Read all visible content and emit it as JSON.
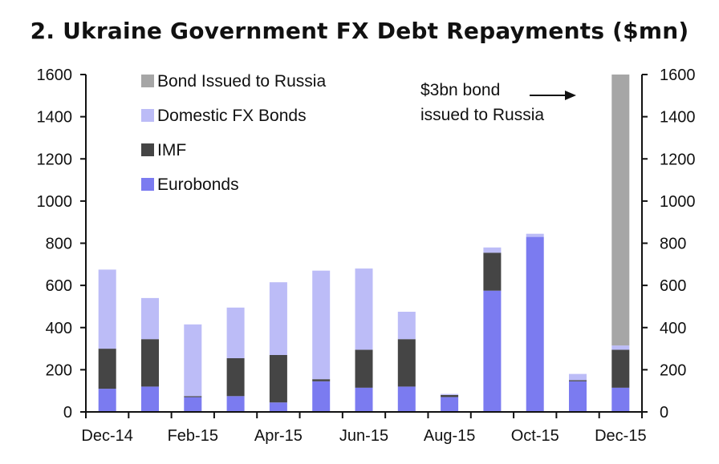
{
  "chart_data": {
    "type": "bar",
    "stacked": true,
    "title": "2. Ukraine Government FX Debt Repayments ($mn)",
    "categories": [
      "Dec-14",
      "Jan-15",
      "Feb-15",
      "Mar-15",
      "Apr-15",
      "May-15",
      "Jun-15",
      "Jul-15",
      "Aug-15",
      "Sep-15",
      "Oct-15",
      "Nov-15",
      "Dec-15"
    ],
    "x_tick_labels": [
      "Dec-14",
      "Feb-15",
      "Apr-15",
      "Jun-15",
      "Aug-15",
      "Oct-15",
      "Dec-15"
    ],
    "ylim": [
      0,
      1600
    ],
    "yticks": [
      0,
      200,
      400,
      600,
      800,
      1000,
      1200,
      1400,
      1600
    ],
    "secondary_y_axis": true,
    "series": [
      {
        "name": "Eurobonds",
        "color": "#7b7bf0",
        "values": [
          110,
          120,
          70,
          75,
          45,
          145,
          115,
          120,
          70,
          575,
          830,
          145,
          115
        ]
      },
      {
        "name": "IMF",
        "color": "#454545",
        "values": [
          190,
          225,
          5,
          180,
          225,
          10,
          180,
          225,
          10,
          180,
          0,
          5,
          180
        ]
      },
      {
        "name": "Domestic FX Bonds",
        "color": "#bcbcf7",
        "values": [
          375,
          195,
          340,
          240,
          345,
          515,
          385,
          130,
          5,
          25,
          15,
          30,
          20
        ]
      },
      {
        "name": "Bond Issued to Russia",
        "color": "#a6a6a6",
        "values": [
          0,
          0,
          0,
          0,
          0,
          0,
          0,
          0,
          0,
          0,
          0,
          0,
          1285
        ]
      }
    ],
    "legend_position": "top-left",
    "legend_order": [
      "Bond Issued to Russia",
      "Domestic FX Bonds",
      "IMF",
      "Eurobonds"
    ],
    "annotations": [
      {
        "lines": [
          "$3bn bond",
          "issued to Russia"
        ],
        "arrow": "right",
        "points_to": "Dec-15"
      }
    ],
    "grid": false
  }
}
